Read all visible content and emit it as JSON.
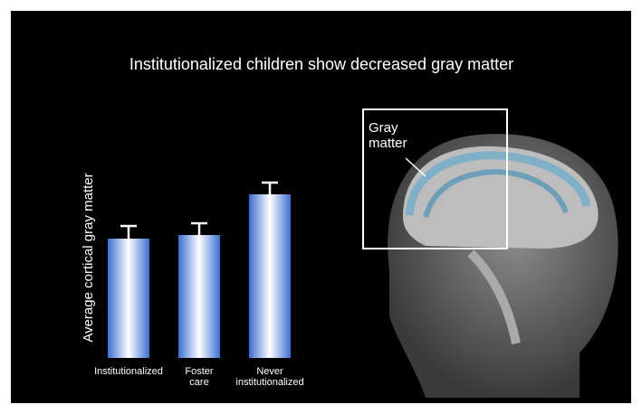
{
  "chart_data": {
    "type": "bar",
    "title": "Institutionalized children show decreased gray matter",
    "y_label": "Average cortical gray matter",
    "categories": [
      "Institutionalized",
      "Foster care",
      "Never institutionalized"
    ],
    "values": [
      132,
      136,
      181
    ],
    "errors": [
      14,
      13,
      13
    ],
    "ylim": [
      0,
      200
    ],
    "color": "#3a6fd0",
    "annotations": [
      "Gray matter"
    ]
  }
}
